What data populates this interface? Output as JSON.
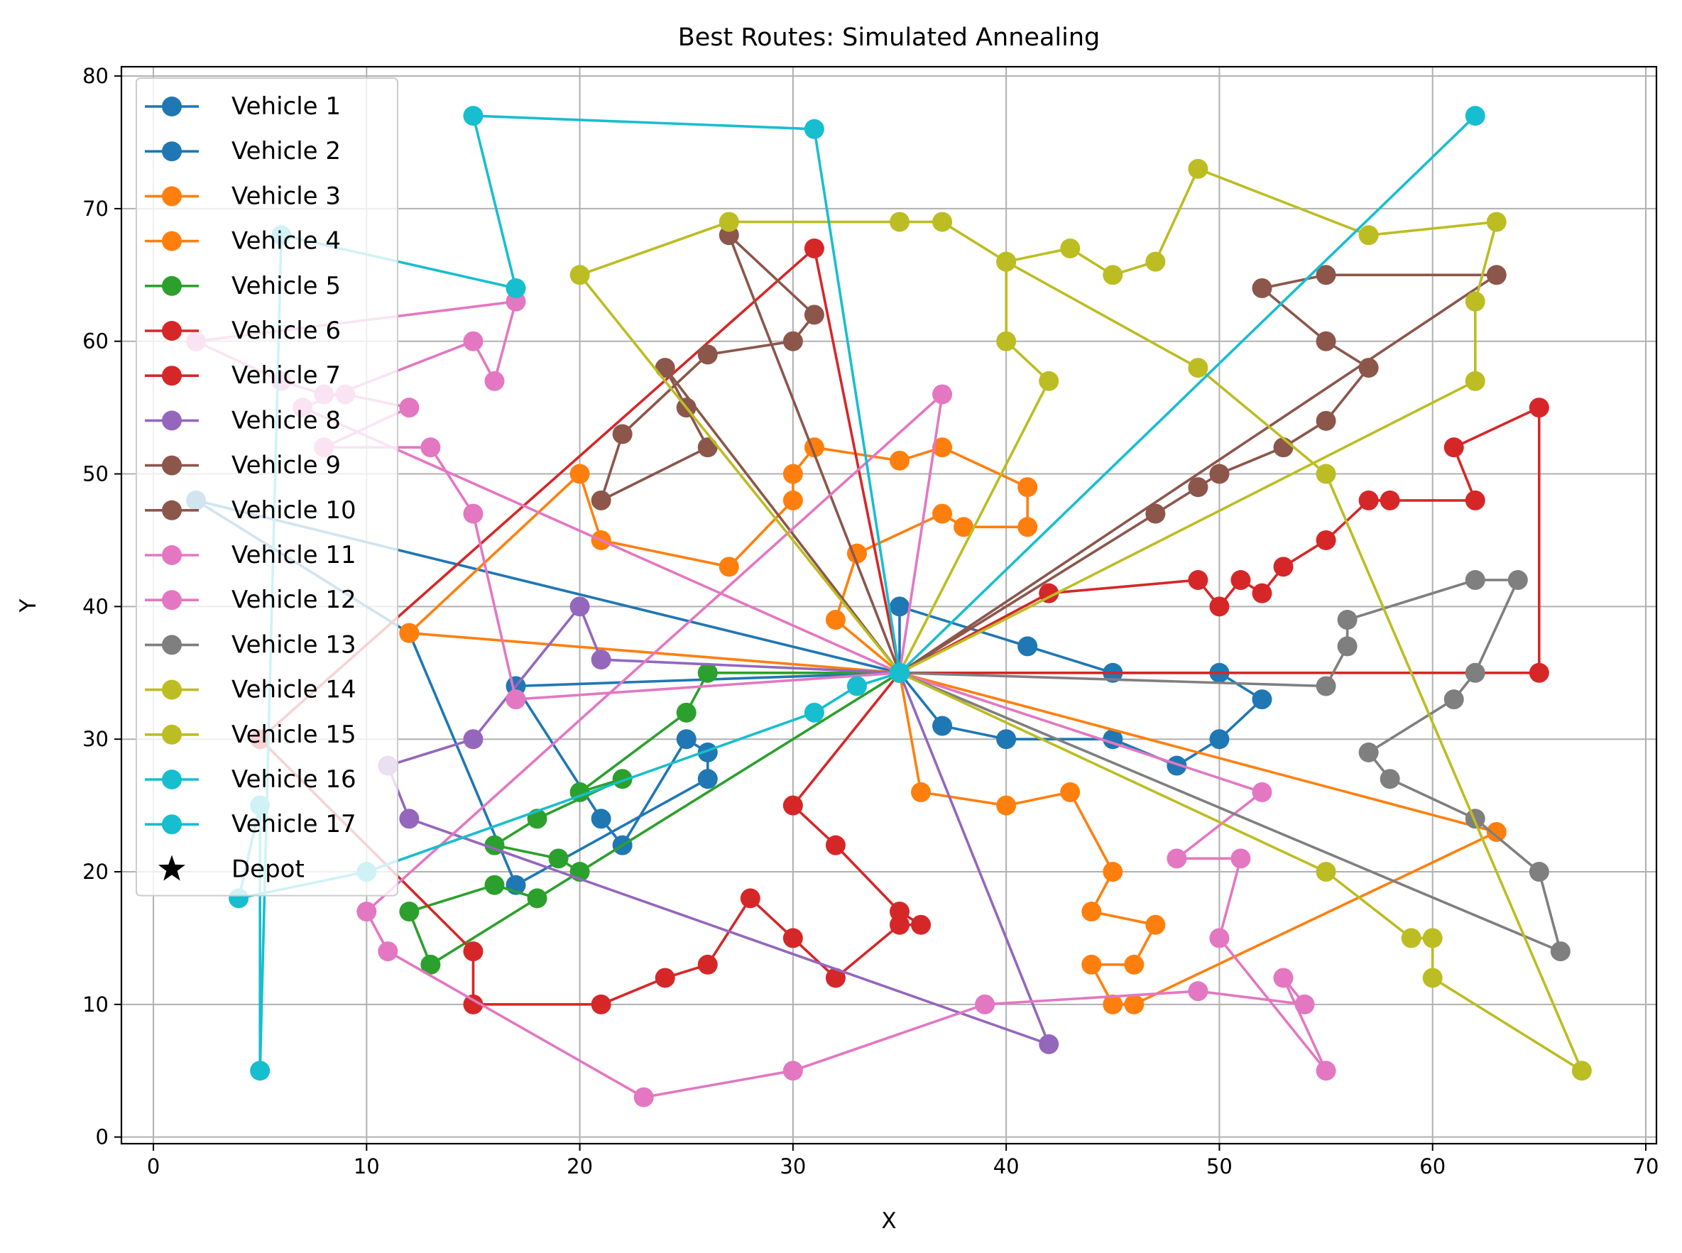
{
  "chart_data": {
    "type": "line",
    "title": "Best Routes: Simulated Annealing",
    "xlabel": "X",
    "ylabel": "Y",
    "xlim": [
      -1.5,
      70.5
    ],
    "ylim": [
      -0.5,
      80.7
    ],
    "xticks": [
      0,
      10,
      20,
      30,
      40,
      50,
      60,
      70
    ],
    "yticks": [
      0,
      10,
      20,
      30,
      40,
      50,
      60,
      70,
      80
    ],
    "grid": true,
    "legend_position": "top-left",
    "depot": {
      "name": "Depot",
      "x": 35,
      "y": 35,
      "marker": "star",
      "color": "#17becf"
    },
    "series": [
      {
        "name": "Vehicle 1",
        "color": "#1f77b4",
        "points": [
          [
            35,
            35
          ],
          [
            35,
            40
          ],
          [
            41,
            37
          ],
          [
            45,
            35
          ],
          [
            50,
            35
          ],
          [
            52,
            33
          ],
          [
            50,
            30
          ],
          [
            48,
            28
          ],
          [
            45,
            30
          ],
          [
            40,
            30
          ],
          [
            37,
            31
          ],
          [
            35,
            35
          ]
        ]
      },
      {
        "name": "Vehicle 2",
        "color": "#1f77b4",
        "points": [
          [
            35,
            35
          ],
          [
            2,
            48
          ],
          [
            12,
            38
          ],
          [
            17,
            19
          ],
          [
            26,
            27
          ],
          [
            26,
            29
          ],
          [
            25,
            30
          ],
          [
            22,
            22
          ],
          [
            21,
            24
          ],
          [
            17,
            34
          ],
          [
            35,
            35
          ]
        ]
      },
      {
        "name": "Vehicle 3",
        "color": "#ff7f0e",
        "points": [
          [
            35,
            35
          ],
          [
            36,
            26
          ],
          [
            40,
            25
          ],
          [
            43,
            26
          ],
          [
            45,
            20
          ],
          [
            44,
            17
          ],
          [
            47,
            16
          ],
          [
            46,
            13
          ],
          [
            44,
            13
          ],
          [
            45,
            10
          ],
          [
            46,
            10
          ],
          [
            63,
            23
          ],
          [
            35,
            35
          ]
        ]
      },
      {
        "name": "Vehicle 4",
        "color": "#ff7f0e",
        "points": [
          [
            35,
            35
          ],
          [
            12,
            38
          ],
          [
            20,
            50
          ],
          [
            21,
            45
          ],
          [
            27,
            43
          ],
          [
            30,
            48
          ],
          [
            30,
            50
          ],
          [
            31,
            52
          ],
          [
            35,
            51
          ],
          [
            37,
            52
          ],
          [
            41,
            49
          ],
          [
            41,
            46
          ],
          [
            38,
            46
          ],
          [
            37,
            47
          ],
          [
            33,
            44
          ],
          [
            32,
            39
          ],
          [
            35,
            35
          ]
        ]
      },
      {
        "name": "Vehicle 5",
        "color": "#2ca02c",
        "points": [
          [
            35,
            35
          ],
          [
            26,
            35
          ],
          [
            25,
            32
          ],
          [
            20,
            26
          ],
          [
            22,
            27
          ],
          [
            18,
            24
          ],
          [
            16,
            22
          ],
          [
            19,
            21
          ],
          [
            20,
            20
          ],
          [
            18,
            18
          ],
          [
            16,
            19
          ],
          [
            12,
            17
          ],
          [
            13,
            13
          ],
          [
            35,
            35
          ]
        ]
      },
      {
        "name": "Vehicle 6",
        "color": "#d62728",
        "points": [
          [
            35,
            35
          ],
          [
            42,
            41
          ],
          [
            49,
            42
          ],
          [
            50,
            40
          ],
          [
            51,
            42
          ],
          [
            52,
            41
          ],
          [
            53,
            43
          ],
          [
            55,
            45
          ],
          [
            57,
            48
          ],
          [
            58,
            48
          ],
          [
            62,
            48
          ],
          [
            61,
            52
          ],
          [
            65,
            55
          ],
          [
            65,
            35
          ],
          [
            35,
            35
          ]
        ]
      },
      {
        "name": "Vehicle 7",
        "color": "#d62728",
        "points": [
          [
            35,
            35
          ],
          [
            31,
            67
          ],
          [
            5,
            30
          ],
          [
            15,
            14
          ],
          [
            15,
            10
          ],
          [
            21,
            10
          ],
          [
            24,
            12
          ],
          [
            26,
            13
          ],
          [
            28,
            18
          ],
          [
            30,
            15
          ],
          [
            32,
            12
          ],
          [
            35,
            16
          ],
          [
            36,
            16
          ],
          [
            35,
            17
          ],
          [
            32,
            22
          ],
          [
            30,
            25
          ],
          [
            35,
            35
          ]
        ]
      },
      {
        "name": "Vehicle 8",
        "color": "#9467bd",
        "points": [
          [
            35,
            35
          ],
          [
            42,
            7
          ],
          [
            12,
            24
          ],
          [
            11,
            28
          ],
          [
            15,
            30
          ],
          [
            20,
            40
          ],
          [
            21,
            36
          ],
          [
            35,
            35
          ]
        ]
      },
      {
        "name": "Vehicle 9",
        "color": "#8c564b",
        "points": [
          [
            35,
            35
          ],
          [
            24,
            58
          ],
          [
            25,
            55
          ],
          [
            26,
            52
          ],
          [
            21,
            48
          ],
          [
            22,
            53
          ],
          [
            26,
            59
          ],
          [
            30,
            60
          ],
          [
            31,
            62
          ],
          [
            27,
            68
          ],
          [
            35,
            35
          ]
        ]
      },
      {
        "name": "Vehicle 10",
        "color": "#8c564b",
        "points": [
          [
            35,
            35
          ],
          [
            47,
            47
          ],
          [
            49,
            49
          ],
          [
            50,
            50
          ],
          [
            53,
            52
          ],
          [
            55,
            54
          ],
          [
            57,
            58
          ],
          [
            55,
            60
          ],
          [
            52,
            64
          ],
          [
            55,
            65
          ],
          [
            63,
            65
          ],
          [
            35,
            35
          ]
        ]
      },
      {
        "name": "Vehicle 11",
        "color": "#e377c2",
        "points": [
          [
            35,
            35
          ],
          [
            37,
            56
          ],
          [
            10,
            17
          ],
          [
            11,
            14
          ],
          [
            23,
            3
          ],
          [
            30,
            5
          ],
          [
            39,
            10
          ],
          [
            49,
            11
          ],
          [
            54,
            10
          ],
          [
            53,
            12
          ],
          [
            55,
            5
          ],
          [
            50,
            15
          ],
          [
            51,
            21
          ],
          [
            48,
            21
          ],
          [
            52,
            26
          ],
          [
            35,
            35
          ]
        ]
      },
      {
        "name": "Vehicle 12",
        "color": "#e377c2",
        "points": [
          [
            35,
            35
          ],
          [
            17,
            33
          ],
          [
            15,
            47
          ],
          [
            13,
            52
          ],
          [
            8,
            52
          ],
          [
            12,
            55
          ],
          [
            9,
            56
          ],
          [
            8,
            56
          ],
          [
            6,
            57
          ],
          [
            2,
            60
          ],
          [
            17,
            63
          ],
          [
            16,
            57
          ],
          [
            15,
            60
          ],
          [
            7,
            55
          ],
          [
            35,
            35
          ]
        ]
      },
      {
        "name": "Vehicle 13",
        "color": "#7f7f7f",
        "points": [
          [
            35,
            35
          ],
          [
            55,
            34
          ],
          [
            56,
            37
          ],
          [
            56,
            39
          ],
          [
            62,
            42
          ],
          [
            64,
            42
          ],
          [
            62,
            35
          ],
          [
            61,
            33
          ],
          [
            57,
            29
          ],
          [
            58,
            27
          ],
          [
            62,
            24
          ],
          [
            65,
            20
          ],
          [
            66,
            14
          ],
          [
            35,
            35
          ]
        ]
      },
      {
        "name": "Vehicle 14",
        "color": "#bcbd22",
        "points": [
          [
            35,
            35
          ],
          [
            20,
            65
          ],
          [
            27,
            69
          ],
          [
            35,
            69
          ],
          [
            37,
            69
          ],
          [
            40,
            66
          ],
          [
            43,
            67
          ],
          [
            45,
            65
          ],
          [
            47,
            66
          ],
          [
            49,
            73
          ],
          [
            57,
            68
          ],
          [
            63,
            69
          ],
          [
            62,
            63
          ],
          [
            62,
            57
          ],
          [
            35,
            35
          ]
        ]
      },
      {
        "name": "Vehicle 15",
        "color": "#bcbd22",
        "points": [
          [
            35,
            35
          ],
          [
            42,
            57
          ],
          [
            40,
            60
          ],
          [
            40,
            66
          ],
          [
            49,
            58
          ],
          [
            55,
            50
          ],
          [
            67,
            5
          ],
          [
            60,
            12
          ],
          [
            60,
            15
          ],
          [
            59,
            15
          ],
          [
            55,
            20
          ],
          [
            35,
            35
          ]
        ]
      },
      {
        "name": "Vehicle 16",
        "color": "#17becf",
        "points": [
          [
            35,
            35
          ],
          [
            62,
            77
          ],
          [
            35,
            35
          ]
        ]
      },
      {
        "name": "Vehicle 17",
        "color": "#17becf",
        "points": [
          [
            35,
            35
          ],
          [
            31,
            76
          ],
          [
            15,
            77
          ],
          [
            17,
            64
          ],
          [
            6,
            68
          ],
          [
            5,
            5
          ],
          [
            5,
            25
          ],
          [
            4,
            18
          ],
          [
            10,
            20
          ],
          [
            31,
            32
          ],
          [
            33,
            34
          ],
          [
            35,
            35
          ]
        ]
      }
    ]
  }
}
